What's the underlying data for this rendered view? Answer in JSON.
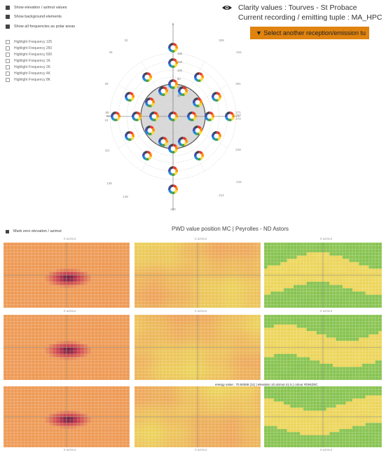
{
  "toggles": [
    {
      "label": "Show elevation / azimut values",
      "checked": true
    },
    {
      "label": "Show background elements",
      "checked": true
    },
    {
      "label": "Show all frequencies as polar areas",
      "checked": true
    }
  ],
  "highlights": [
    {
      "label": "Highlight Frequency 125"
    },
    {
      "label": "Highlight Frequency 250"
    },
    {
      "label": "Highlight Frequency 500"
    },
    {
      "label": "Highlight Frequency 1K"
    },
    {
      "label": "Highlight Frequency 2K"
    },
    {
      "label": "Highlight Frequency 4K"
    },
    {
      "label": "Highlight Frequency 8K"
    }
  ],
  "info": {
    "clarity": "Clarity values : Tourves - St Probace",
    "recording": "Current recording / emitting tuple : MA_HPC",
    "select_button": "▼ Select another reception/emission tu"
  },
  "polar": {
    "angle_labels": [
      "0",
      "32",
      "45",
      "69",
      "88",
      "90",
      "91",
      "111",
      "139",
      "148",
      "180",
      "212",
      "215",
      "249",
      "268",
      "270",
      "271",
      "291",
      "315",
      "328"
    ],
    "ring_labels": [
      "180",
      "150",
      "120",
      "90",
      "60",
      "30"
    ]
  },
  "heatmap_section": {
    "toggle_label": "Mark zero elevation / azimut",
    "title": "PWD value position MC | Peyrolles - ND Astors",
    "tooltip": "energy value : 70.84068 (11) | elevation 10 azimut 41.5 | colour #D94D0C",
    "axis_label": "azimut",
    "axis_zero": "0"
  },
  "colors": {
    "accent": "#e0830f",
    "donut": [
      "#e53935",
      "#fb8c00",
      "#fdd835",
      "#43a047",
      "#1e88e5",
      "#3949ab",
      "#37474f"
    ],
    "heat_red": "#c8374d",
    "heat_orange": "#ee9c5a",
    "heat_yellow": "#ecd45a",
    "heat_green": "#86c350"
  },
  "icons": {
    "eye": "eye-icon"
  }
}
